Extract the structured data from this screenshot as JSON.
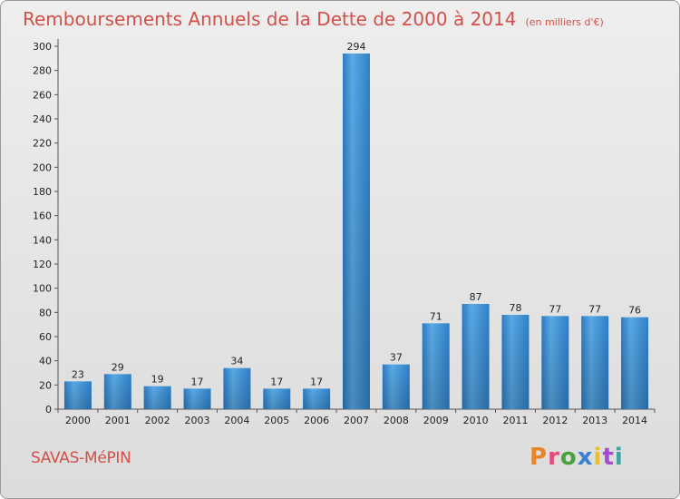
{
  "header": {
    "title": "Remboursements Annuels de la Dette de 2000 à 2014",
    "unit": "(en milliers d'€)"
  },
  "footer": {
    "commune": "SAVAS-MéPIN",
    "logo": "Proxiti"
  },
  "colors": {
    "title": "#d2504a",
    "bar": "#3c8fd6",
    "logo_letters": [
      "#e8842a",
      "#e44b7c",
      "#4aa23d",
      "#3a7fd1",
      "#e8c02b",
      "#a84ad0",
      "#3ba7a0"
    ]
  },
  "chart_data": {
    "type": "bar",
    "categories": [
      "2000",
      "2001",
      "2002",
      "2003",
      "2004",
      "2005",
      "2006",
      "2007",
      "2008",
      "2009",
      "2010",
      "2011",
      "2012",
      "2013",
      "2014"
    ],
    "values": [
      23,
      29,
      19,
      17,
      34,
      17,
      17,
      294,
      37,
      71,
      87,
      78,
      77,
      77,
      76
    ],
    "ylim": [
      0,
      300
    ],
    "yticks": [
      0,
      20,
      40,
      60,
      80,
      100,
      120,
      140,
      160,
      180,
      200,
      220,
      240,
      260,
      280,
      300
    ],
    "grid": false,
    "data_labels": true
  }
}
